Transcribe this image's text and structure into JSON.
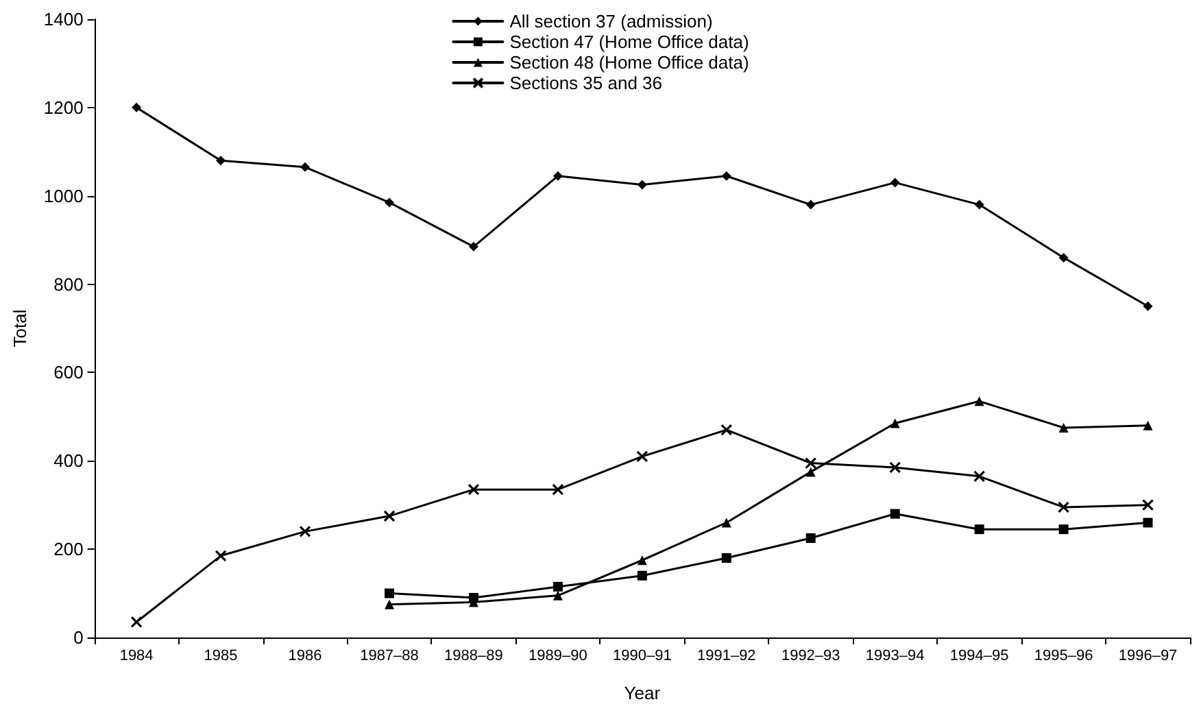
{
  "chart_data": {
    "type": "line",
    "xlabel": "Year",
    "ylabel": "Total",
    "categories": [
      "1984",
      "1985",
      "1986",
      "1987–88",
      "1988–89",
      "1989–90",
      "1990–91",
      "1991–92",
      "1992–93",
      "1993–94",
      "1994–95",
      "1995–96",
      "1996–97"
    ],
    "series": [
      {
        "name": "All section 37 (admission)",
        "color": "#000000",
        "marker": "diamond",
        "values": [
          1200,
          1080,
          1065,
          985,
          885,
          1045,
          1025,
          1045,
          980,
          1030,
          980,
          860,
          750
        ]
      },
      {
        "name": "Section 47 (Home Office data)",
        "color": "#000000",
        "marker": "square",
        "values": [
          null,
          null,
          null,
          100,
          90,
          115,
          140,
          180,
          225,
          280,
          245,
          245,
          260
        ]
      },
      {
        "name": "Section 48 (Home Office data)",
        "color": "#000000",
        "marker": "triangle",
        "values": [
          null,
          null,
          null,
          75,
          80,
          95,
          175,
          260,
          375,
          485,
          535,
          475,
          480
        ]
      },
      {
        "name": "Sections 35 and 36",
        "color": "#000000",
        "marker": "cross",
        "values": [
          35,
          185,
          240,
          275,
          335,
          335,
          410,
          470,
          395,
          385,
          365,
          295,
          300
        ]
      }
    ],
    "ylim": [
      0,
      1400
    ],
    "yticks": [
      0,
      200,
      400,
      600,
      800,
      1000,
      1200,
      1400
    ],
    "grid": false,
    "legend": "top",
    "line_style": "solid"
  }
}
